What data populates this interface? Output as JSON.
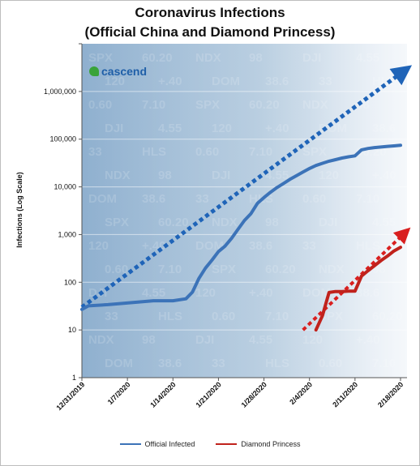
{
  "chart_data": {
    "type": "line",
    "title": "Coronavirus Infections\n(Official China and Diamond Princess)",
    "ylabel": "Infections (Log Scale)",
    "yscale": "log",
    "ylim": [
      1,
      10000000
    ],
    "y_tick_labels": [
      "1",
      "10",
      "100",
      "1,000",
      "10,000",
      "100,000",
      "1,000,000"
    ],
    "x_tick_labels": [
      "12/31/2019",
      "1/7/2020",
      "1/14/2020",
      "1/21/2020",
      "1/28/2020",
      "2/4/2020",
      "2/11/2020",
      "2/18/2020"
    ],
    "x_start": "12/31/2019",
    "x_end": "2/19/2020",
    "grid": true,
    "legend_position": "bottom",
    "series": [
      {
        "name": "Official Infected",
        "color": "#3c73b8",
        "points": [
          [
            "12/31/2019",
            27
          ],
          [
            "1/1/2020",
            32
          ],
          [
            "1/4/2020",
            34
          ],
          [
            "1/11/2020",
            41
          ],
          [
            "1/14/2020",
            41
          ],
          [
            "1/16/2020",
            45
          ],
          [
            "1/17/2020",
            62
          ],
          [
            "1/18/2020",
            121
          ],
          [
            "1/19/2020",
            198
          ],
          [
            "1/20/2020",
            291
          ],
          [
            "1/21/2020",
            440
          ],
          [
            "1/22/2020",
            571
          ],
          [
            "1/23/2020",
            830
          ],
          [
            "1/24/2020",
            1287
          ],
          [
            "1/25/2020",
            1975
          ],
          [
            "1/26/2020",
            2744
          ],
          [
            "1/27/2020",
            4515
          ],
          [
            "1/28/2020",
            5974
          ],
          [
            "1/29/2020",
            7711
          ],
          [
            "1/30/2020",
            9692
          ],
          [
            "1/31/2020",
            11791
          ],
          [
            "2/1/2020",
            14380
          ],
          [
            "2/2/2020",
            17205
          ],
          [
            "2/3/2020",
            20438
          ],
          [
            "2/4/2020",
            24324
          ],
          [
            "2/5/2020",
            28018
          ],
          [
            "2/6/2020",
            31161
          ],
          [
            "2/7/2020",
            34546
          ],
          [
            "2/8/2020",
            37198
          ],
          [
            "2/9/2020",
            40171
          ],
          [
            "2/10/2020",
            42638
          ],
          [
            "2/11/2020",
            44653
          ],
          [
            "2/12/2020",
            59804
          ],
          [
            "2/13/2020",
            63851
          ],
          [
            "2/14/2020",
            66492
          ],
          [
            "2/15/2020",
            68500
          ],
          [
            "2/16/2020",
            70548
          ],
          [
            "2/17/2020",
            72436
          ],
          [
            "2/18/2020",
            74185
          ]
        ]
      },
      {
        "name": "Diamond Princess",
        "color": "#c0221c",
        "points": [
          [
            "2/5/2020",
            10
          ],
          [
            "2/6/2020",
            20
          ],
          [
            "2/7/2020",
            61
          ],
          [
            "2/8/2020",
            64
          ],
          [
            "2/9/2020",
            64
          ],
          [
            "2/10/2020",
            65
          ],
          [
            "2/11/2020",
            65
          ],
          [
            "2/12/2020",
            135
          ],
          [
            "2/13/2020",
            175
          ],
          [
            "2/15/2020",
            285
          ],
          [
            "2/16/2020",
            355
          ],
          [
            "2/17/2020",
            454
          ],
          [
            "2/18/2020",
            542
          ]
        ]
      }
    ],
    "trend_lines": [
      {
        "color": "#1f64b8",
        "from": [
          "12/31/2019",
          30
        ],
        "to": [
          "2/19/2020",
          3000000
        ]
      },
      {
        "color": "#d91f1f",
        "from": [
          "2/3/2020",
          10
        ],
        "to": [
          "2/19/2020",
          1200
        ]
      }
    ]
  },
  "logo": {
    "text": "cascend"
  }
}
